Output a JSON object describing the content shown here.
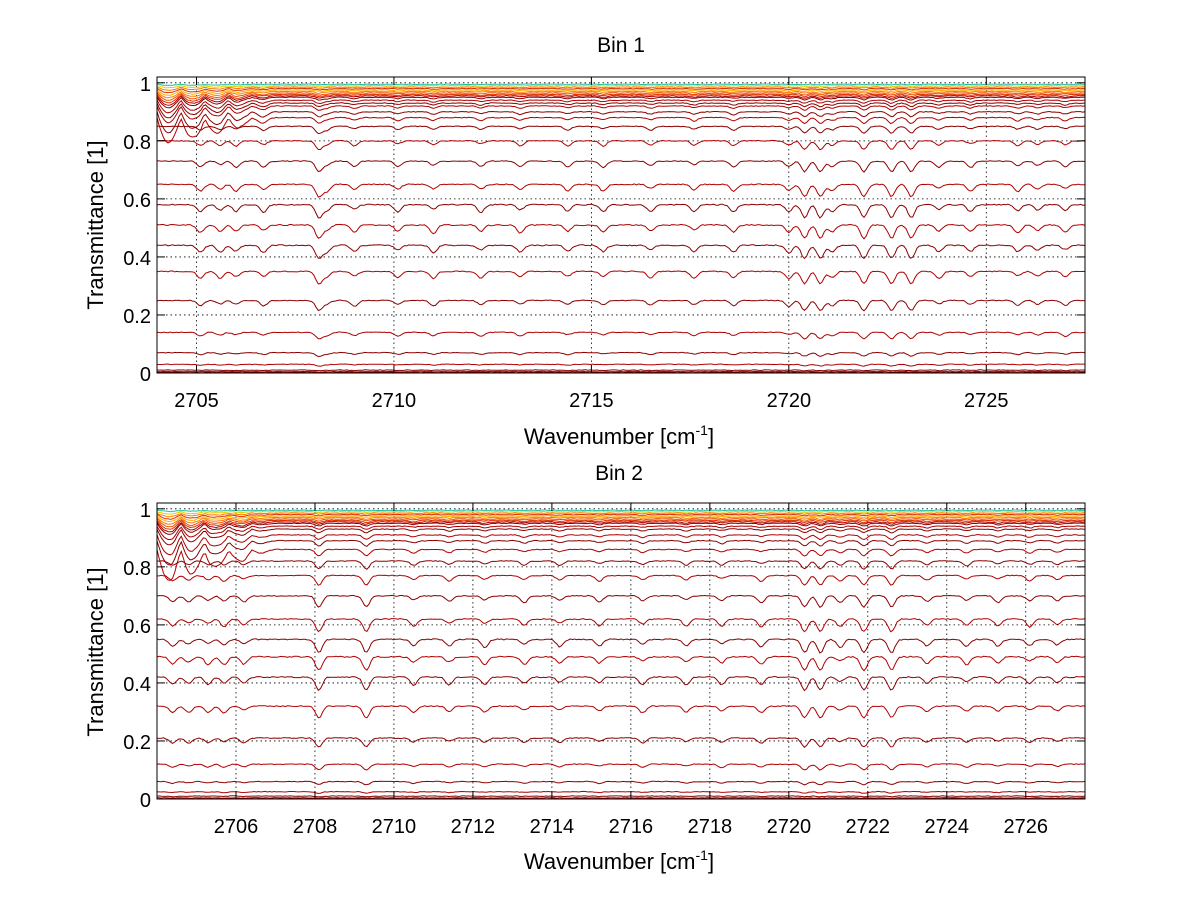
{
  "figure_background": "#ffffff",
  "chart_data": [
    {
      "type": "line",
      "title": "Bin 1",
      "xlabel": "Wavenumber [cm",
      "xlabel_sup": "-1",
      "xlabel_end": "]",
      "ylabel": "Transmittance [1]",
      "xlim": [
        2704,
        2727.5
      ],
      "ylim": [
        0,
        1.02
      ],
      "xticks": [
        2705,
        2710,
        2715,
        2720,
        2725
      ],
      "xtick_labels": [
        "2705",
        "2710",
        "2715",
        "2720",
        "2725"
      ],
      "yticks": [
        0,
        0.2,
        0.4,
        0.6,
        0.8,
        1
      ],
      "ytick_labels": [
        "0",
        "0.2",
        "0.4",
        "0.6",
        "0.8",
        "1"
      ],
      "grid": true,
      "series_count": 30,
      "series_top_level": 0.995,
      "series_baselines": [
        0.995,
        0.99,
        0.985,
        0.98,
        0.975,
        0.97,
        0.965,
        0.96,
        0.955,
        0.95,
        0.94,
        0.93,
        0.92,
        0.9,
        0.88,
        0.85,
        0.8,
        0.73,
        0.65,
        0.58,
        0.51,
        0.44,
        0.35,
        0.25,
        0.14,
        0.07,
        0.03,
        0.01,
        0.005,
        0.002
      ],
      "absorption_lines": [
        2705.1,
        2705.6,
        2706.0,
        2706.7,
        2708.1,
        2708.3,
        2709.0,
        2710.1,
        2711.0,
        2712.2,
        2713.2,
        2714.4,
        2715.3,
        2716.5,
        2717.6,
        2718.6,
        2720.0,
        2720.4,
        2720.8,
        2721.1,
        2721.9,
        2722.6,
        2723.1,
        2723.8,
        2724.6,
        2725.8,
        2726.3,
        2727.0
      ],
      "strong_lines": [
        2708.1,
        2720.4,
        2720.8,
        2721.9,
        2722.6,
        2723.1
      ],
      "line_colors": [
        "#8b0000",
        "#b00000",
        "#cc1a00",
        "#e03000",
        "#f05000",
        "#ff7a00",
        "#ffb000",
        "#e0d000",
        "#80c040",
        "#20c0a0"
      ]
    },
    {
      "type": "line",
      "title": "Bin 2",
      "xlabel": "Wavenumber [cm",
      "xlabel_sup": "-1",
      "xlabel_end": "]",
      "ylabel": "Transmittance [1]",
      "xlim": [
        2704,
        2727.5
      ],
      "ylim": [
        0,
        1.02
      ],
      "xticks": [
        2706,
        2708,
        2710,
        2712,
        2714,
        2716,
        2718,
        2720,
        2722,
        2724,
        2726
      ],
      "xtick_labels": [
        "2706",
        "2708",
        "2710",
        "2712",
        "2714",
        "2716",
        "2718",
        "2720",
        "2722",
        "2724",
        "2726"
      ],
      "yticks": [
        0,
        0.2,
        0.4,
        0.6,
        0.8,
        1
      ],
      "ytick_labels": [
        "0",
        "0.2",
        "0.4",
        "0.6",
        "0.8",
        "1"
      ],
      "grid": true,
      "series_count": 30,
      "series_top_level": 0.995,
      "series_baselines": [
        0.995,
        0.99,
        0.985,
        0.98,
        0.975,
        0.97,
        0.965,
        0.96,
        0.955,
        0.95,
        0.94,
        0.93,
        0.91,
        0.89,
        0.86,
        0.82,
        0.77,
        0.7,
        0.62,
        0.55,
        0.49,
        0.42,
        0.32,
        0.21,
        0.12,
        0.06,
        0.025,
        0.01,
        0.004,
        0.001
      ],
      "absorption_lines": [
        2704.4,
        2704.8,
        2705.3,
        2705.7,
        2706.2,
        2708.1,
        2709.3,
        2710.5,
        2711.4,
        2712.3,
        2713.3,
        2714.2,
        2715.2,
        2716.3,
        2717.4,
        2718.3,
        2719.3,
        2720.4,
        2720.8,
        2721.3,
        2721.9,
        2722.6,
        2723.5,
        2724.5,
        2725.3,
        2726.1,
        2726.8
      ],
      "strong_lines": [
        2708.1,
        2709.3,
        2720.4,
        2720.8,
        2721.9,
        2722.6
      ],
      "line_colors": [
        "#8b0000",
        "#b00000",
        "#cc1a00",
        "#e03000",
        "#f05000",
        "#ff7a00",
        "#ffb000",
        "#e0d000",
        "#80c040",
        "#20c0a0"
      ]
    }
  ]
}
